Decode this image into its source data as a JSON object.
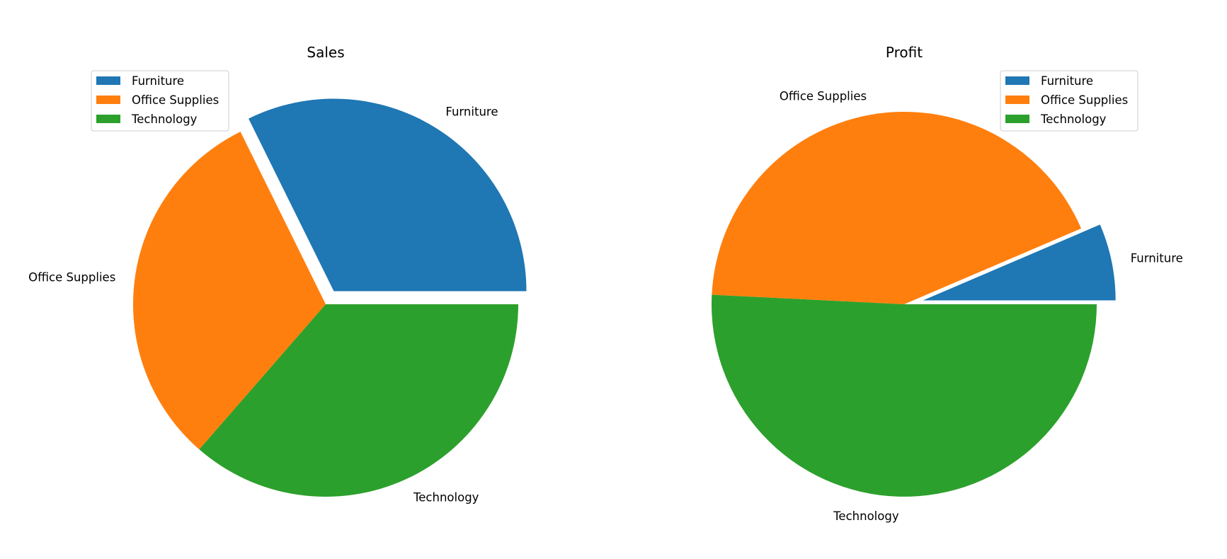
{
  "chart_data": [
    {
      "type": "pie",
      "title": "Sales",
      "categories": [
        "Furniture",
        "Office Supplies",
        "Technology"
      ],
      "values": [
        742000,
        719047,
        836154
      ],
      "explode": [
        0.08,
        0,
        0
      ],
      "colors": [
        "#1f77b4",
        "#ff7f0e",
        "#2ca02c"
      ],
      "legend": {
        "placement": "upper left",
        "entries": [
          "Furniture",
          "Office Supplies",
          "Technology"
        ]
      }
    },
    {
      "type": "pie",
      "title": "Profit",
      "categories": [
        "Furniture",
        "Office Supplies",
        "Technology"
      ],
      "values": [
        18451,
        122491,
        145455
      ],
      "explode": [
        0.1,
        0,
        0
      ],
      "colors": [
        "#1f77b4",
        "#ff7f0e",
        "#2ca02c"
      ],
      "legend": {
        "placement": "upper right",
        "entries": [
          "Furniture",
          "Office Supplies",
          "Technology"
        ]
      }
    }
  ]
}
